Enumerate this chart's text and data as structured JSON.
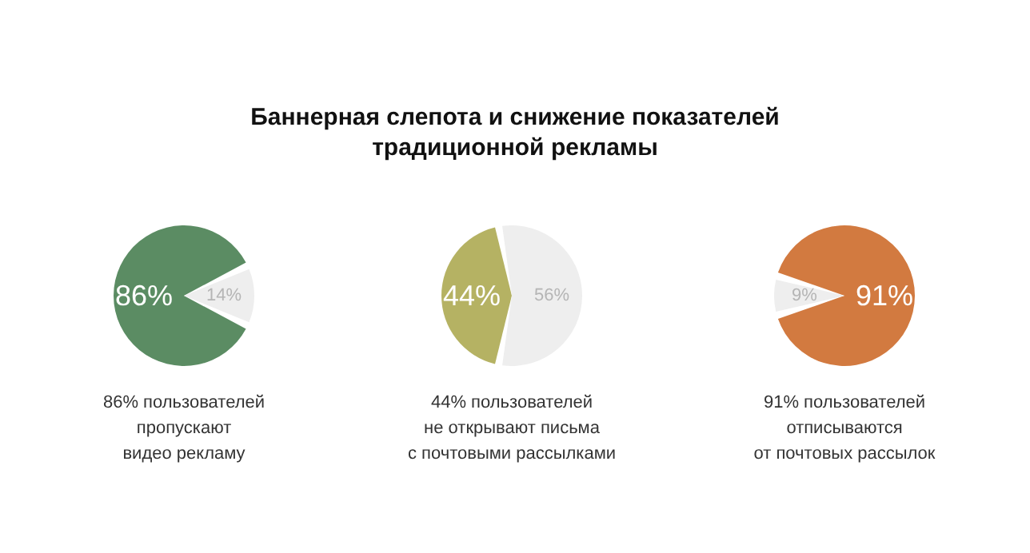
{
  "chart_data": [
    {
      "type": "pie",
      "categories": [
        null,
        null
      ],
      "values": [
        86,
        14
      ],
      "colors": [
        "#5b8c63",
        "#eeeeee"
      ],
      "value_labels": [
        "86%",
        "14%"
      ],
      "annotations": [
        "86% пользователей\nпропускают\nвидео рекламу"
      ]
    },
    {
      "type": "pie",
      "title": "Баннерная слепота и снижение показателей\nтрадиционной рекламы",
      "categories": [
        null,
        null
      ],
      "values": [
        44,
        56
      ],
      "colors": [
        "#b5b263",
        "#eeeeee"
      ],
      "value_labels": [
        "44%",
        "56%"
      ],
      "annotations": [
        "44% пользователей\nне открывают письма\nс почтовыми рассылками"
      ]
    },
    {
      "type": "pie",
      "categories": [
        null,
        null
      ],
      "values": [
        91,
        9
      ],
      "colors": [
        "#d27a40",
        "#eeeeee"
      ],
      "value_labels": [
        "91%",
        "9%"
      ],
      "annotations": [
        "91% пользователей\nотписываются\nот почтовых рассылок"
      ]
    }
  ]
}
